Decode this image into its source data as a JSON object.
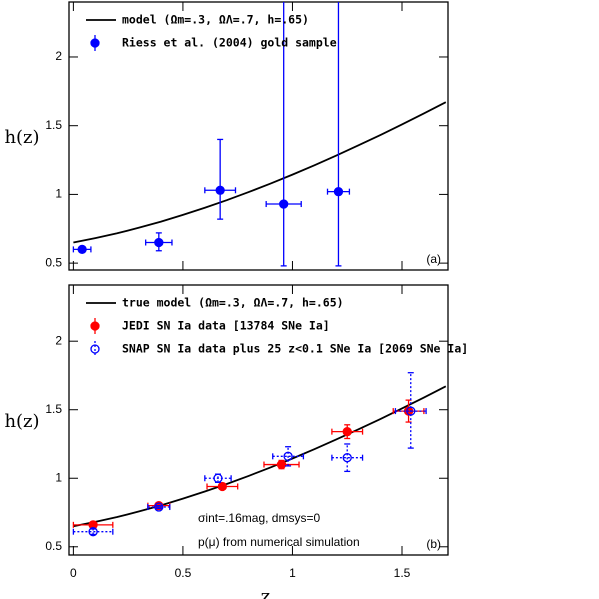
{
  "chart_data": [
    {
      "type": "errorbar",
      "panel": 0,
      "ylabel": "h(z)",
      "annotation": "(a)",
      "xlim": [
        -0.02,
        1.71
      ],
      "ylim": [
        0.45,
        2.4
      ],
      "xticks": [
        0,
        0.5,
        1,
        1.5
      ],
      "yticks": [
        0.5,
        1,
        1.5,
        2
      ],
      "show_xtick_labels": false,
      "series": [
        {
          "name": "model (Ωm=.3, ΩΛ=.7, h=.65)",
          "kind": "line",
          "color": "#000000",
          "x": [
            0,
            0.1,
            0.2,
            0.3,
            0.4,
            0.5,
            0.6,
            0.7,
            0.8,
            0.9,
            1.0,
            1.1,
            1.2,
            1.3,
            1.4,
            1.5,
            1.6,
            1.7
          ],
          "values": [
            0.65,
            0.682,
            0.717,
            0.758,
            0.802,
            0.851,
            0.903,
            0.958,
            1.017,
            1.079,
            1.144,
            1.212,
            1.283,
            1.356,
            1.431,
            1.509,
            1.589,
            1.671
          ]
        },
        {
          "name": "Riess et al. (2004) gold sample",
          "kind": "errorbar",
          "color": "#0000ff",
          "marker": "filled",
          "linestyle": "solid",
          "x": [
            0.04,
            0.39,
            0.67,
            0.96,
            1.21
          ],
          "values": [
            0.6,
            0.65,
            1.03,
            0.93,
            1.02
          ],
          "xerr": [
            0.04,
            0.06,
            0.07,
            0.08,
            0.05
          ],
          "yerr_minus": [
            0.01,
            0.06,
            0.21,
            0.45,
            0.54
          ],
          "yerr_plus": [
            0.01,
            0.07,
            0.37,
            1.6,
            1.6
          ]
        }
      ]
    },
    {
      "type": "errorbar",
      "panel": 1,
      "ylabel": "h(z)",
      "xlabel": "z",
      "annotation": "(b)",
      "notes": [
        "σint=.16mag, dmsys=0",
        "p(μ) from numerical simulation"
      ],
      "xlim": [
        -0.02,
        1.71
      ],
      "ylim": [
        0.44,
        2.41
      ],
      "xticks": [
        0,
        0.5,
        1,
        1.5
      ],
      "yticks": [
        0.5,
        1,
        1.5,
        2
      ],
      "show_xtick_labels": true,
      "series": [
        {
          "name": "true model (Ωm=.3, ΩΛ=.7, h=.65)",
          "kind": "line",
          "color": "#000000",
          "x": [
            0,
            0.1,
            0.2,
            0.3,
            0.4,
            0.5,
            0.6,
            0.7,
            0.8,
            0.9,
            1.0,
            1.1,
            1.2,
            1.3,
            1.4,
            1.5,
            1.6,
            1.7
          ],
          "values": [
            0.65,
            0.682,
            0.717,
            0.758,
            0.802,
            0.851,
            0.903,
            0.958,
            1.017,
            1.079,
            1.144,
            1.212,
            1.283,
            1.356,
            1.431,
            1.509,
            1.589,
            1.671
          ]
        },
        {
          "name": "JEDI SN Ia data [13784 SNe Ia]",
          "kind": "errorbar",
          "color": "#ff0000",
          "marker": "filled",
          "linestyle": "solid",
          "x": [
            0.09,
            0.39,
            0.68,
            0.95,
            1.25,
            1.53
          ],
          "values": [
            0.66,
            0.8,
            0.94,
            1.1,
            1.34,
            1.49
          ],
          "xerr": [
            0.09,
            0.05,
            0.07,
            0.08,
            0.07,
            0.07
          ],
          "yerr_minus": [
            0.02,
            0.01,
            0.02,
            0.03,
            0.05,
            0.08
          ],
          "yerr_plus": [
            0.02,
            0.01,
            0.02,
            0.03,
            0.05,
            0.08
          ]
        },
        {
          "name": "SNAP SN Ia data plus 25 z<0.1 SNe Ia [2069 SNe Ia]",
          "kind": "errorbar",
          "color": "#0000ff",
          "marker": "open",
          "linestyle": "dotted",
          "x": [
            0.09,
            0.39,
            0.66,
            0.98,
            1.25,
            1.54
          ],
          "values": [
            0.61,
            0.79,
            1.0,
            1.16,
            1.15,
            1.49
          ],
          "xerr": [
            0.09,
            0.05,
            0.06,
            0.07,
            0.07,
            0.07
          ],
          "yerr_minus": [
            0.02,
            0.01,
            0.03,
            0.07,
            0.1,
            0.27
          ],
          "yerr_plus": [
            0.02,
            0.01,
            0.03,
            0.07,
            0.1,
            0.28
          ]
        }
      ]
    }
  ]
}
